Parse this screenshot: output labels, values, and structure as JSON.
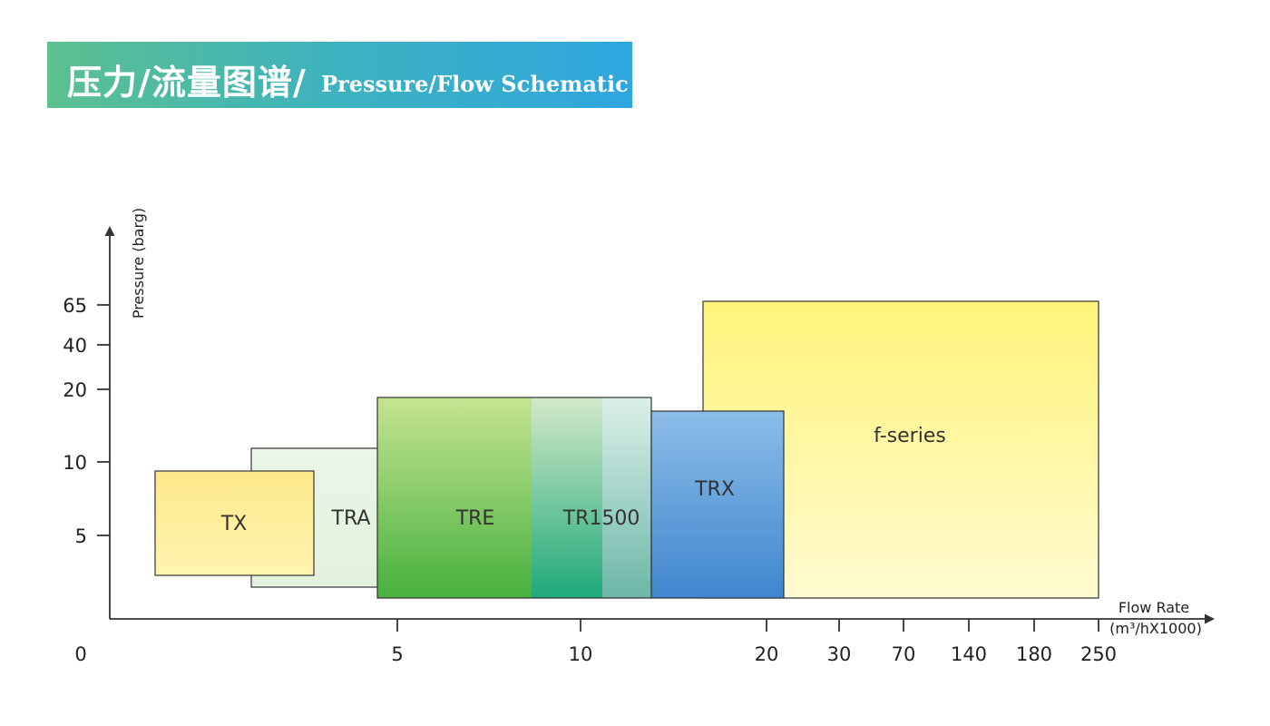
{
  "header": {
    "title_cn": "压力/流量图谱/",
    "title_en": "Pressure/Flow Schematic",
    "gradient": [
      "#5cc08f",
      "#2fa6df"
    ]
  },
  "chart_data": {
    "type": "range-block",
    "xlabel": [
      "Flow Rate",
      "(m³/hX1000)"
    ],
    "ylabel": "Pressure (barg)",
    "x_ticks": [
      "0",
      "5",
      "10",
      "20",
      "30",
      "70",
      "140",
      "180",
      "250"
    ],
    "y_ticks": [
      "5",
      "10",
      "20",
      "40",
      "65"
    ],
    "x_scale": "non-linear (piecewise categorical)",
    "series": [
      {
        "name": "TX",
        "x": [
          null,
          null
        ],
        "y": [
          null,
          null
        ],
        "color": "#fdf0a0"
      },
      {
        "name": "TRA",
        "x": [
          null,
          null
        ],
        "y": [
          null,
          null
        ],
        "color": "#e3f3df"
      },
      {
        "name": "TRE",
        "x": [
          null,
          null
        ],
        "y": [
          null,
          null
        ],
        "color": "#7ec860"
      },
      {
        "name": "TR1500",
        "x": [
          null,
          null
        ],
        "y": [
          null,
          null
        ],
        "color": "#6fbfa8"
      },
      {
        "name": "TRX",
        "x": [
          null,
          null
        ],
        "y": [
          null,
          null
        ],
        "color": "#6aa6dc"
      },
      {
        "name": "f-series",
        "x": [
          null,
          "250"
        ],
        "y": [
          null,
          "65"
        ],
        "color": "#fff27a"
      }
    ]
  }
}
